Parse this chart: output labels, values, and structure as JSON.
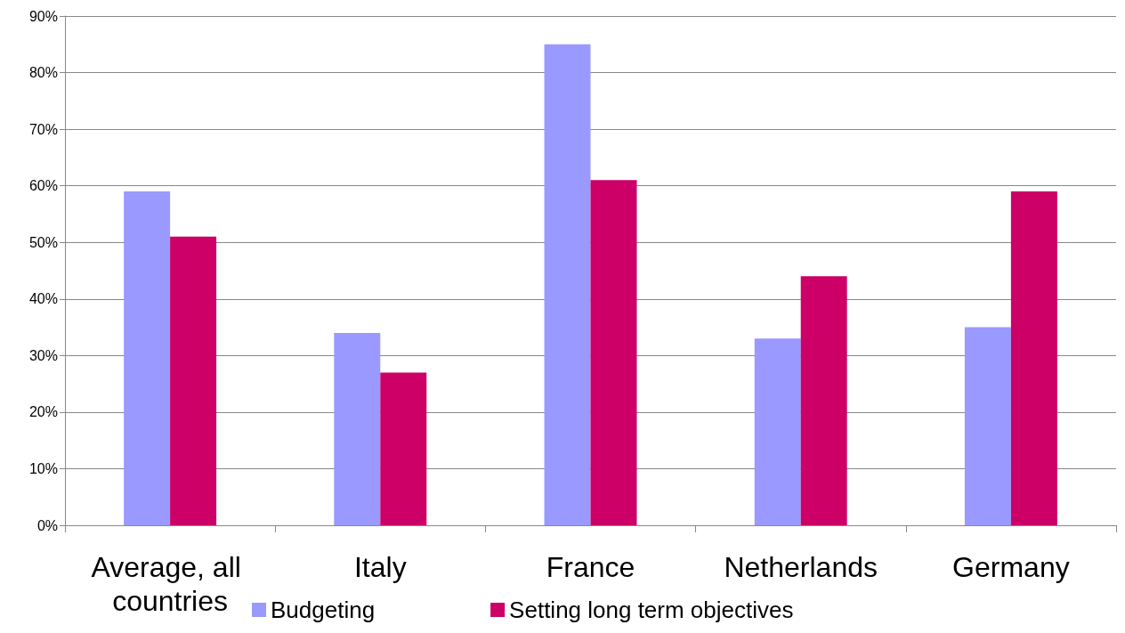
{
  "chart_data": {
    "type": "bar",
    "categories": [
      "Average, all countries",
      "Italy",
      "France",
      "Netherlands",
      "Germany"
    ],
    "series": [
      {
        "name": "Budgeting",
        "color": "#9999ff",
        "values": [
          59,
          34,
          85,
          33,
          35
        ]
      },
      {
        "name": "Setting long term objectives",
        "color": "#cc0066",
        "values": [
          51,
          27,
          61,
          44,
          59
        ]
      }
    ],
    "ylim": [
      0,
      90
    ],
    "yticks": [
      {
        "value": 0,
        "label": "0%"
      },
      {
        "value": 10,
        "label": "10%"
      },
      {
        "value": 20,
        "label": "20%"
      },
      {
        "value": 30,
        "label": "30%"
      },
      {
        "value": 40,
        "label": "40%"
      },
      {
        "value": 50,
        "label": "50%"
      },
      {
        "value": 60,
        "label": "60%"
      },
      {
        "value": 70,
        "label": "70%"
      },
      {
        "value": 80,
        "label": "80%"
      },
      {
        "value": 90,
        "label": "90%"
      }
    ],
    "grid": "y",
    "legend": "bottom"
  }
}
